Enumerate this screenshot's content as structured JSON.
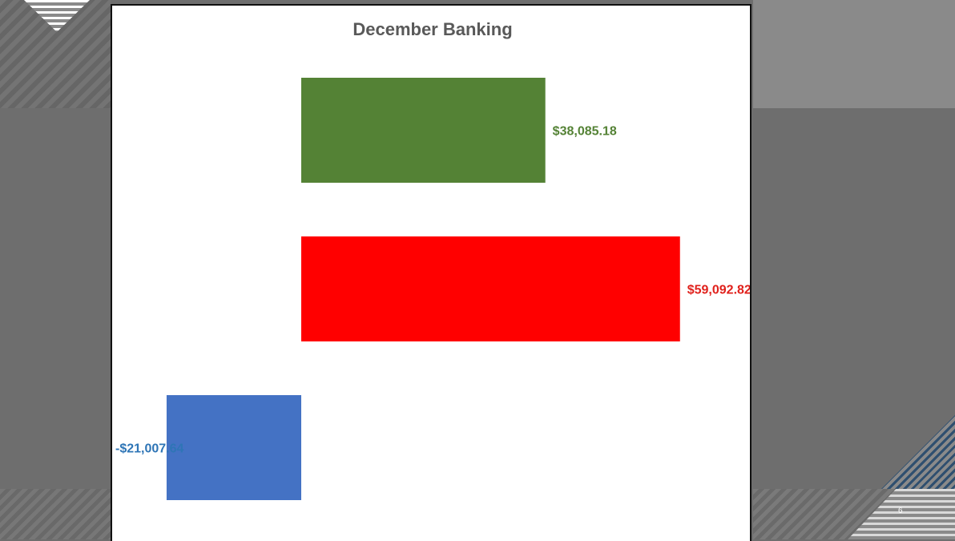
{
  "slide": {
    "number": "6"
  },
  "colors": {
    "background": "#6e6e6e",
    "panel": "#ffffff",
    "bars": [
      "#548235",
      "#ff0000",
      "#4472c4"
    ],
    "labels": [
      "#548235",
      "#e0201b",
      "#2e75b6"
    ]
  },
  "chart_data": {
    "type": "bar",
    "orientation": "horizontal",
    "title": "December Banking",
    "xlabel": "",
    "ylabel": "",
    "categories": [
      "",
      "",
      ""
    ],
    "values": [
      38085.18,
      59092.82,
      -21007.64
    ],
    "data_labels": [
      "$38,085.18",
      "$59,092.82",
      "-$21,007.64"
    ],
    "grid": false,
    "legend": "none",
    "axes_visible": false,
    "xlim": [
      -29500,
      70000
    ]
  }
}
